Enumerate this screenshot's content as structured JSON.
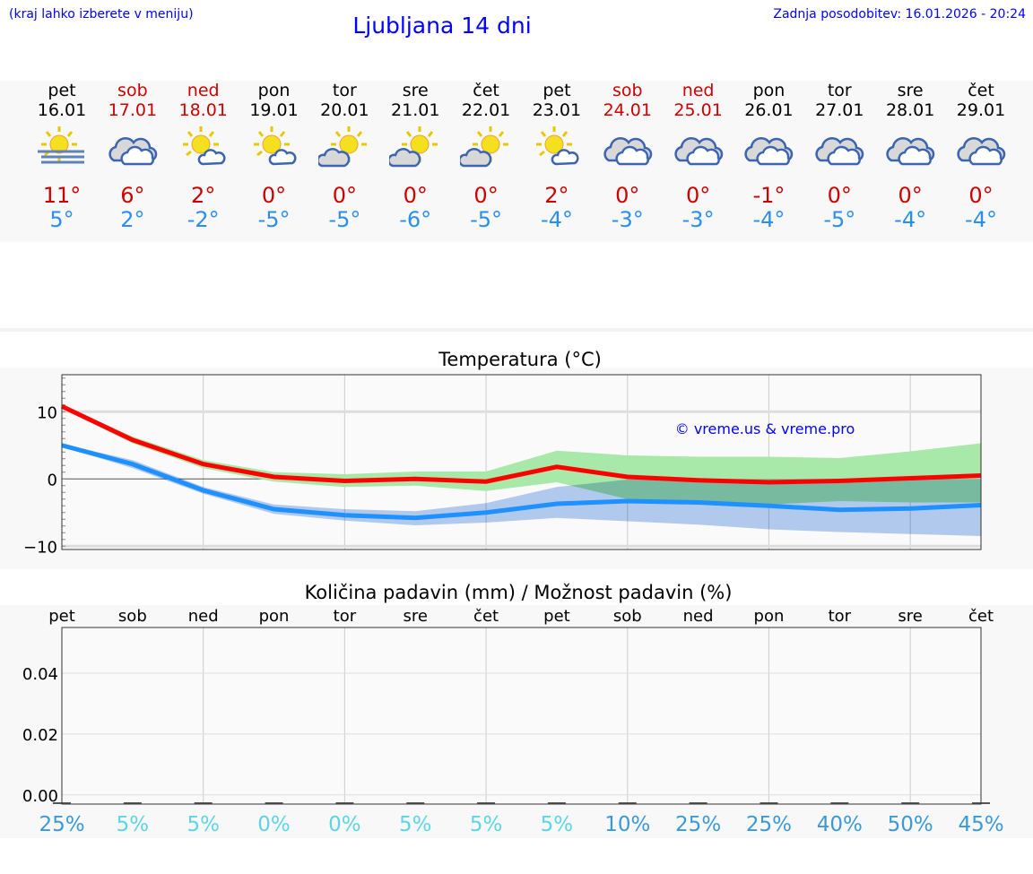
{
  "header": {
    "note": "(kraj lahko izberete v meniju)",
    "title": "Ljubljana 14 dni",
    "updated": "Zadnja posodobitev: 16.01.2026 - 20:24"
  },
  "days": [
    {
      "name": "pet",
      "date": "16.01",
      "weekend": false,
      "icon": "sun-fog",
      "max": "11°",
      "min": "5°"
    },
    {
      "name": "sob",
      "date": "17.01",
      "weekend": true,
      "icon": "cloudy",
      "max": "6°",
      "min": "2°"
    },
    {
      "name": "ned",
      "date": "18.01",
      "weekend": true,
      "icon": "sun-small-cloud",
      "max": "2°",
      "min": "-2°"
    },
    {
      "name": "pon",
      "date": "19.01",
      "weekend": false,
      "icon": "sun-small-cloud",
      "max": "0°",
      "min": "-5°"
    },
    {
      "name": "tor",
      "date": "20.01",
      "weekend": false,
      "icon": "cloud-sun",
      "max": "0°",
      "min": "-5°"
    },
    {
      "name": "sre",
      "date": "21.01",
      "weekend": false,
      "icon": "cloud-sun",
      "max": "0°",
      "min": "-6°"
    },
    {
      "name": "čet",
      "date": "22.01",
      "weekend": false,
      "icon": "cloud-sun",
      "max": "0°",
      "min": "-5°"
    },
    {
      "name": "pet",
      "date": "23.01",
      "weekend": false,
      "icon": "sun-small-cloud",
      "max": "2°",
      "min": "-4°"
    },
    {
      "name": "sob",
      "date": "24.01",
      "weekend": true,
      "icon": "cloudy",
      "max": "0°",
      "min": "-3°"
    },
    {
      "name": "ned",
      "date": "25.01",
      "weekend": true,
      "icon": "cloudy",
      "max": "0°",
      "min": "-3°"
    },
    {
      "name": "pon",
      "date": "26.01",
      "weekend": false,
      "icon": "cloudy",
      "max": "-1°",
      "min": "-4°"
    },
    {
      "name": "tor",
      "date": "27.01",
      "weekend": false,
      "icon": "cloudy",
      "max": "0°",
      "min": "-5°"
    },
    {
      "name": "sre",
      "date": "28.01",
      "weekend": false,
      "icon": "cloudy",
      "max": "0°",
      "min": "-4°"
    },
    {
      "name": "čet",
      "date": "29.01",
      "weekend": false,
      "icon": "cloudy",
      "max": "0°",
      "min": "-4°"
    }
  ],
  "colors": {
    "weekend": "#cc0000",
    "max_line": "#ff0000",
    "min_line": "#1e90ff",
    "max_band": "#a8e8a8",
    "min_band": "#a8c4f0",
    "pct_high": "#3a9ad9",
    "pct_low": "#5dd5e8"
  },
  "chart_data": [
    {
      "type": "line",
      "title": "Temperatura (°C)",
      "watermark": "© vreme.us & vreme.pro",
      "x": [
        "16.01",
        "17.01",
        "18.01",
        "19.01",
        "20.01",
        "21.01",
        "22.01",
        "23.01",
        "24.01",
        "25.01",
        "26.01",
        "27.01",
        "28.01",
        "29.01"
      ],
      "ylim": [
        -10.5,
        15.5
      ],
      "yticks": [
        -10,
        0,
        10
      ],
      "grid": true,
      "series": [
        {
          "role": "max",
          "values": [
            10.8,
            5.8,
            2.2,
            0.3,
            -0.3,
            0,
            -0.4,
            1.8,
            0.3,
            -0.2,
            -0.5,
            -0.3,
            0.1,
            0.5
          ],
          "band_upper": [
            11,
            6.3,
            2.8,
            1.0,
            0.7,
            1.1,
            1.1,
            4.2,
            3.5,
            3.3,
            3.3,
            3.1,
            4.1,
            5.3
          ],
          "band_lower": [
            10.5,
            5.3,
            1.6,
            -0.4,
            -1.2,
            -1.0,
            -1.8,
            -0.5,
            -3.0,
            -3.5,
            -3.8,
            -3.3,
            -3.5,
            -3.5
          ]
        },
        {
          "role": "min",
          "values": [
            5,
            2.2,
            -1.7,
            -4.5,
            -5.4,
            -5.8,
            -5,
            -3.7,
            -3.3,
            -3.5,
            -4,
            -4.6,
            -4.4,
            -3.9
          ],
          "band_upper": [
            5.2,
            2.8,
            -1.2,
            -3.8,
            -4.5,
            -4.8,
            -3.6,
            -1.2,
            -0.1,
            0,
            0,
            0,
            0,
            0
          ],
          "band_lower": [
            4.8,
            1.6,
            -2.2,
            -5.2,
            -6.2,
            -6.9,
            -6.5,
            -5.8,
            -6.3,
            -6.8,
            -7.5,
            -7.9,
            -8.2,
            -8.5
          ]
        }
      ]
    },
    {
      "type": "bar",
      "title": "Količina padavin (mm) / Možnost padavin (%)",
      "categories": [
        "pet",
        "sob",
        "ned",
        "pon",
        "tor",
        "sre",
        "čet",
        "pet",
        "sob",
        "ned",
        "pon",
        "tor",
        "sre",
        "čet"
      ],
      "values": [
        0,
        0,
        0,
        0,
        0,
        0,
        0,
        0,
        0,
        0,
        0,
        0,
        0,
        0
      ],
      "ylim": [
        -0.003,
        0.055
      ],
      "yticks": [
        "0.00",
        "0.02",
        "0.04"
      ],
      "probability": [
        "25%",
        "5%",
        "5%",
        "0%",
        "0%",
        "5%",
        "5%",
        "5%",
        "10%",
        "25%",
        "25%",
        "40%",
        "50%",
        "45%"
      ],
      "probability_values": [
        25,
        5,
        5,
        0,
        0,
        5,
        5,
        5,
        10,
        25,
        25,
        40,
        50,
        45
      ],
      "grid": true
    }
  ]
}
